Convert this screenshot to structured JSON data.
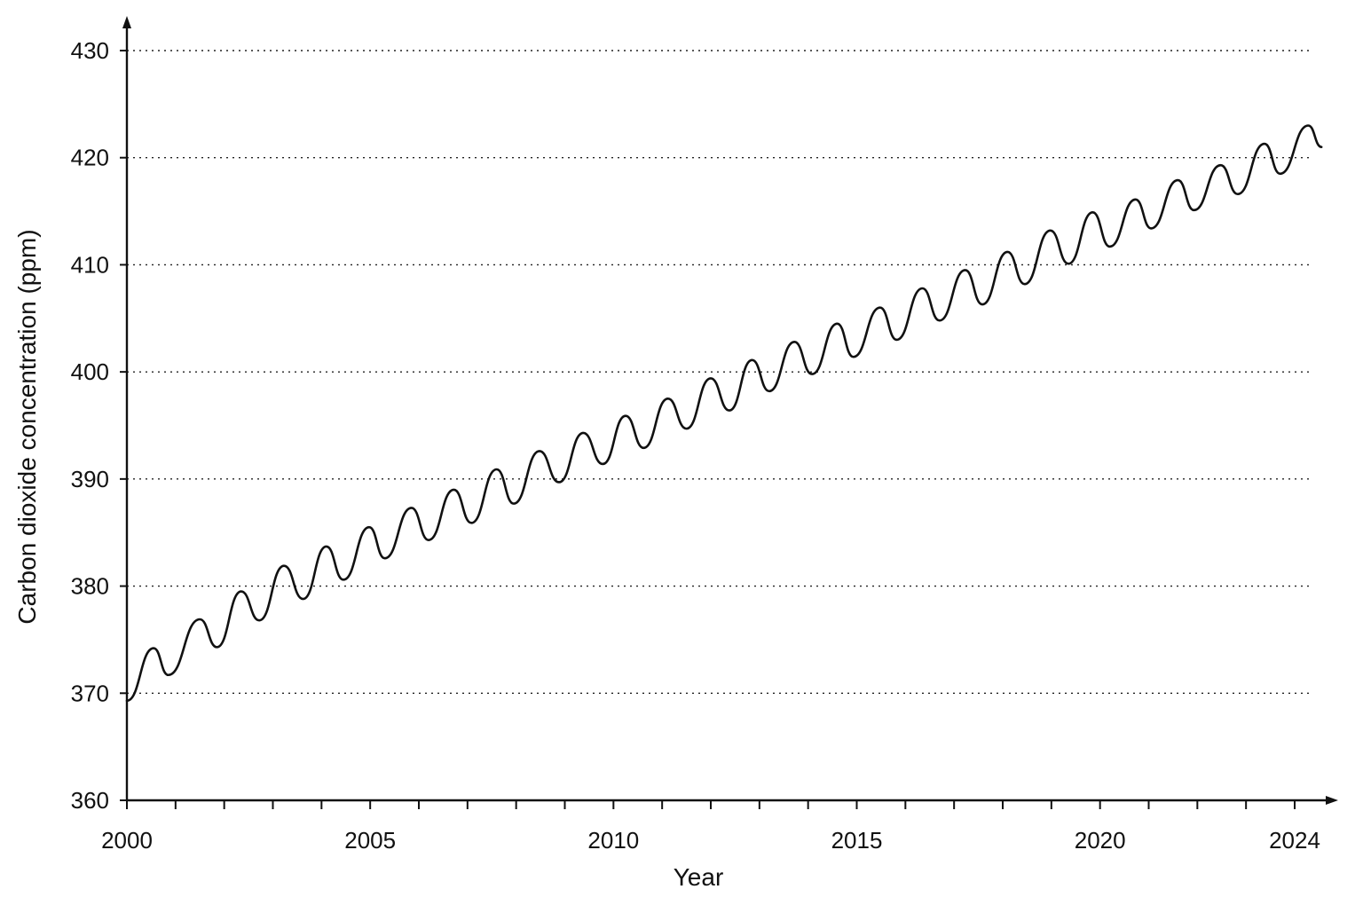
{
  "chart_data": {
    "type": "line",
    "title": "",
    "xlabel": "Year",
    "ylabel": "Carbon dioxide concentration (ppm)",
    "xlim": [
      2000,
      2025
    ],
    "ylim": [
      360,
      430
    ],
    "grid": "horizontal dotted",
    "legend": "none",
    "line_color": "#111111",
    "x_tick_labels": [
      {
        "value": 2000,
        "label": "2000"
      },
      {
        "value": 2005,
        "label": "2005"
      },
      {
        "value": 2010,
        "label": "2010"
      },
      {
        "value": 2015,
        "label": "2015"
      },
      {
        "value": 2020,
        "label": "2020"
      },
      {
        "value": 2024,
        "label": "2024"
      }
    ],
    "x_minor_ticks": [
      2001,
      2002,
      2003,
      2004,
      2006,
      2007,
      2008,
      2009,
      2011,
      2012,
      2013,
      2014,
      2016,
      2017,
      2018,
      2019,
      2021,
      2022,
      2023
    ],
    "y_tick_labels": [
      {
        "value": 360,
        "label": "360"
      },
      {
        "value": 370,
        "label": "370"
      },
      {
        "value": 380,
        "label": "380"
      },
      {
        "value": 390,
        "label": "390"
      },
      {
        "value": 400,
        "label": "400"
      },
      {
        "value": 410,
        "label": "410"
      },
      {
        "value": 420,
        "label": "420"
      },
      {
        "value": 430,
        "label": "430"
      }
    ],
    "series": [
      {
        "x": [
          2000.0,
          2000.55,
          2000.85,
          2001.5,
          2001.85,
          2002.35,
          2002.72,
          2003.23,
          2003.62,
          2004.1,
          2004.45,
          2004.98,
          2005.3,
          2005.85,
          2006.2,
          2006.72,
          2007.08,
          2007.6,
          2007.95,
          2008.48,
          2008.88,
          2009.38,
          2009.78,
          2010.25,
          2010.62,
          2011.12,
          2011.5,
          2012.0,
          2012.38,
          2012.85,
          2013.2,
          2013.72,
          2014.08,
          2014.6,
          2014.93,
          2015.48,
          2015.82,
          2016.35,
          2016.7,
          2017.23,
          2017.58,
          2018.1,
          2018.45,
          2018.98,
          2019.35,
          2019.85,
          2020.2,
          2020.73,
          2021.05,
          2021.6,
          2021.93,
          2022.48,
          2022.83,
          2023.38,
          2023.7,
          2024.28,
          2024.55
        ],
        "y": [
          369.3,
          374.2,
          371.7,
          376.9,
          374.3,
          379.5,
          376.8,
          381.9,
          378.8,
          383.7,
          380.6,
          385.5,
          382.6,
          387.3,
          384.3,
          389.0,
          385.9,
          390.9,
          387.7,
          392.6,
          389.7,
          394.3,
          391.4,
          395.9,
          392.9,
          397.5,
          394.7,
          399.4,
          396.4,
          401.1,
          398.2,
          402.8,
          399.8,
          404.5,
          401.4,
          406.0,
          403.0,
          407.8,
          404.8,
          409.5,
          406.3,
          411.2,
          408.2,
          413.2,
          410.1,
          414.9,
          411.7,
          416.1,
          413.4,
          417.9,
          415.1,
          419.3,
          416.6,
          421.3,
          418.5,
          423.0,
          421.0
        ]
      }
    ]
  }
}
